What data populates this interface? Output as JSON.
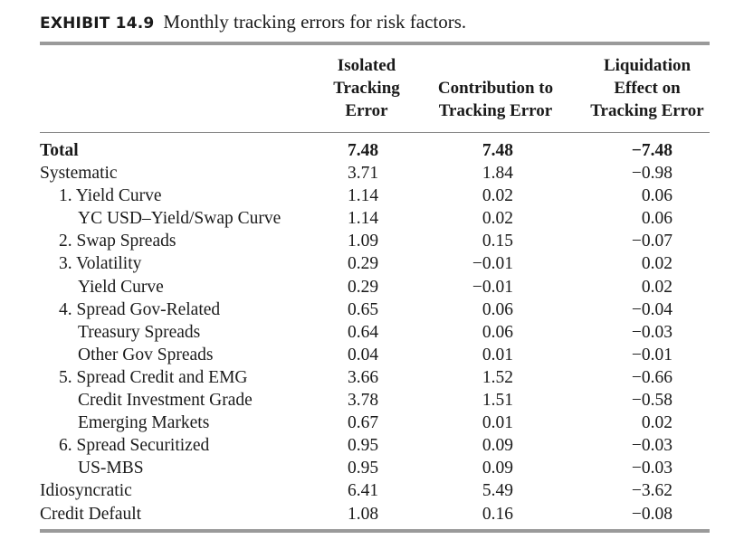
{
  "title": {
    "label": "EXHIBIT 14.9",
    "caption": "Monthly tracking errors for risk factors."
  },
  "columns": [
    {
      "lines": [
        "Isolated",
        "Tracking",
        "Error"
      ]
    },
    {
      "lines": [
        "Contribution to",
        "Tracking Error"
      ]
    },
    {
      "lines": [
        "Liquidation",
        "Effect on",
        "Tracking Error"
      ]
    }
  ],
  "rows": [
    {
      "label": "Total",
      "level": 0,
      "bold": true,
      "isolated": "7.48",
      "contribution": "7.48",
      "liquidation": "−7.48"
    },
    {
      "label": "Systematic",
      "level": 0,
      "isolated": "3.71",
      "contribution": "1.84",
      "liquidation": "−0.98"
    },
    {
      "label": "1. Yield Curve",
      "level": 1,
      "isolated": "1.14",
      "contribution": "0.02",
      "liquidation": "0.06"
    },
    {
      "label": "YC USD–Yield/Swap Curve",
      "level": 2,
      "isolated": "1.14",
      "contribution": "0.02",
      "liquidation": "0.06"
    },
    {
      "label": "2. Swap Spreads",
      "level": 1,
      "isolated": "1.09",
      "contribution": "0.15",
      "liquidation": "−0.07"
    },
    {
      "label": "3. Volatility",
      "level": 1,
      "isolated": "0.29",
      "contribution": "−0.01",
      "liquidation": "0.02"
    },
    {
      "label": "Yield Curve",
      "level": 2,
      "isolated": "0.29",
      "contribution": "−0.01",
      "liquidation": "0.02"
    },
    {
      "label": "4. Spread Gov-Related",
      "level": 1,
      "isolated": "0.65",
      "contribution": "0.06",
      "liquidation": "−0.04"
    },
    {
      "label": "Treasury Spreads",
      "level": 2,
      "isolated": "0.64",
      "contribution": "0.06",
      "liquidation": "−0.03"
    },
    {
      "label": "Other Gov Spreads",
      "level": 2,
      "isolated": "0.04",
      "contribution": "0.01",
      "liquidation": "−0.01"
    },
    {
      "label": "5. Spread Credit and EMG",
      "level": 1,
      "isolated": "3.66",
      "contribution": "1.52",
      "liquidation": "−0.66"
    },
    {
      "label": "Credit Investment Grade",
      "level": 2,
      "isolated": "3.78",
      "contribution": "1.51",
      "liquidation": "−0.58"
    },
    {
      "label": "Emerging Markets",
      "level": 2,
      "isolated": "0.67",
      "contribution": "0.01",
      "liquidation": "0.02"
    },
    {
      "label": "6. Spread Securitized",
      "level": 1,
      "isolated": "0.95",
      "contribution": "0.09",
      "liquidation": "−0.03"
    },
    {
      "label": "US-MBS",
      "level": 2,
      "isolated": "0.95",
      "contribution": "0.09",
      "liquidation": "−0.03"
    },
    {
      "label": "Idiosyncratic",
      "level": 0,
      "isolated": "6.41",
      "contribution": "5.49",
      "liquidation": "−3.62"
    },
    {
      "label": "Credit Default",
      "level": 0,
      "isolated": "1.08",
      "contribution": "0.16",
      "liquidation": "−0.08"
    }
  ]
}
